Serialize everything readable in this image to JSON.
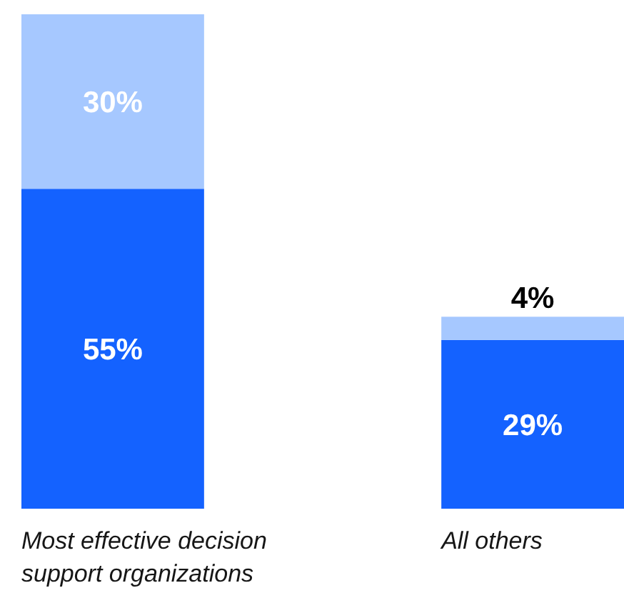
{
  "chart_data": {
    "type": "bar",
    "stacked": true,
    "categories": [
      "Most effective decision support organizations",
      "All others"
    ],
    "series": [
      {
        "color": "#1462ff",
        "values": [
          55,
          29
        ],
        "value_labels": [
          "55%",
          "29%"
        ]
      },
      {
        "color": "#a6c8ff",
        "values": [
          30,
          4
        ],
        "value_labels": [
          "30%",
          "4%"
        ]
      }
    ]
  }
}
